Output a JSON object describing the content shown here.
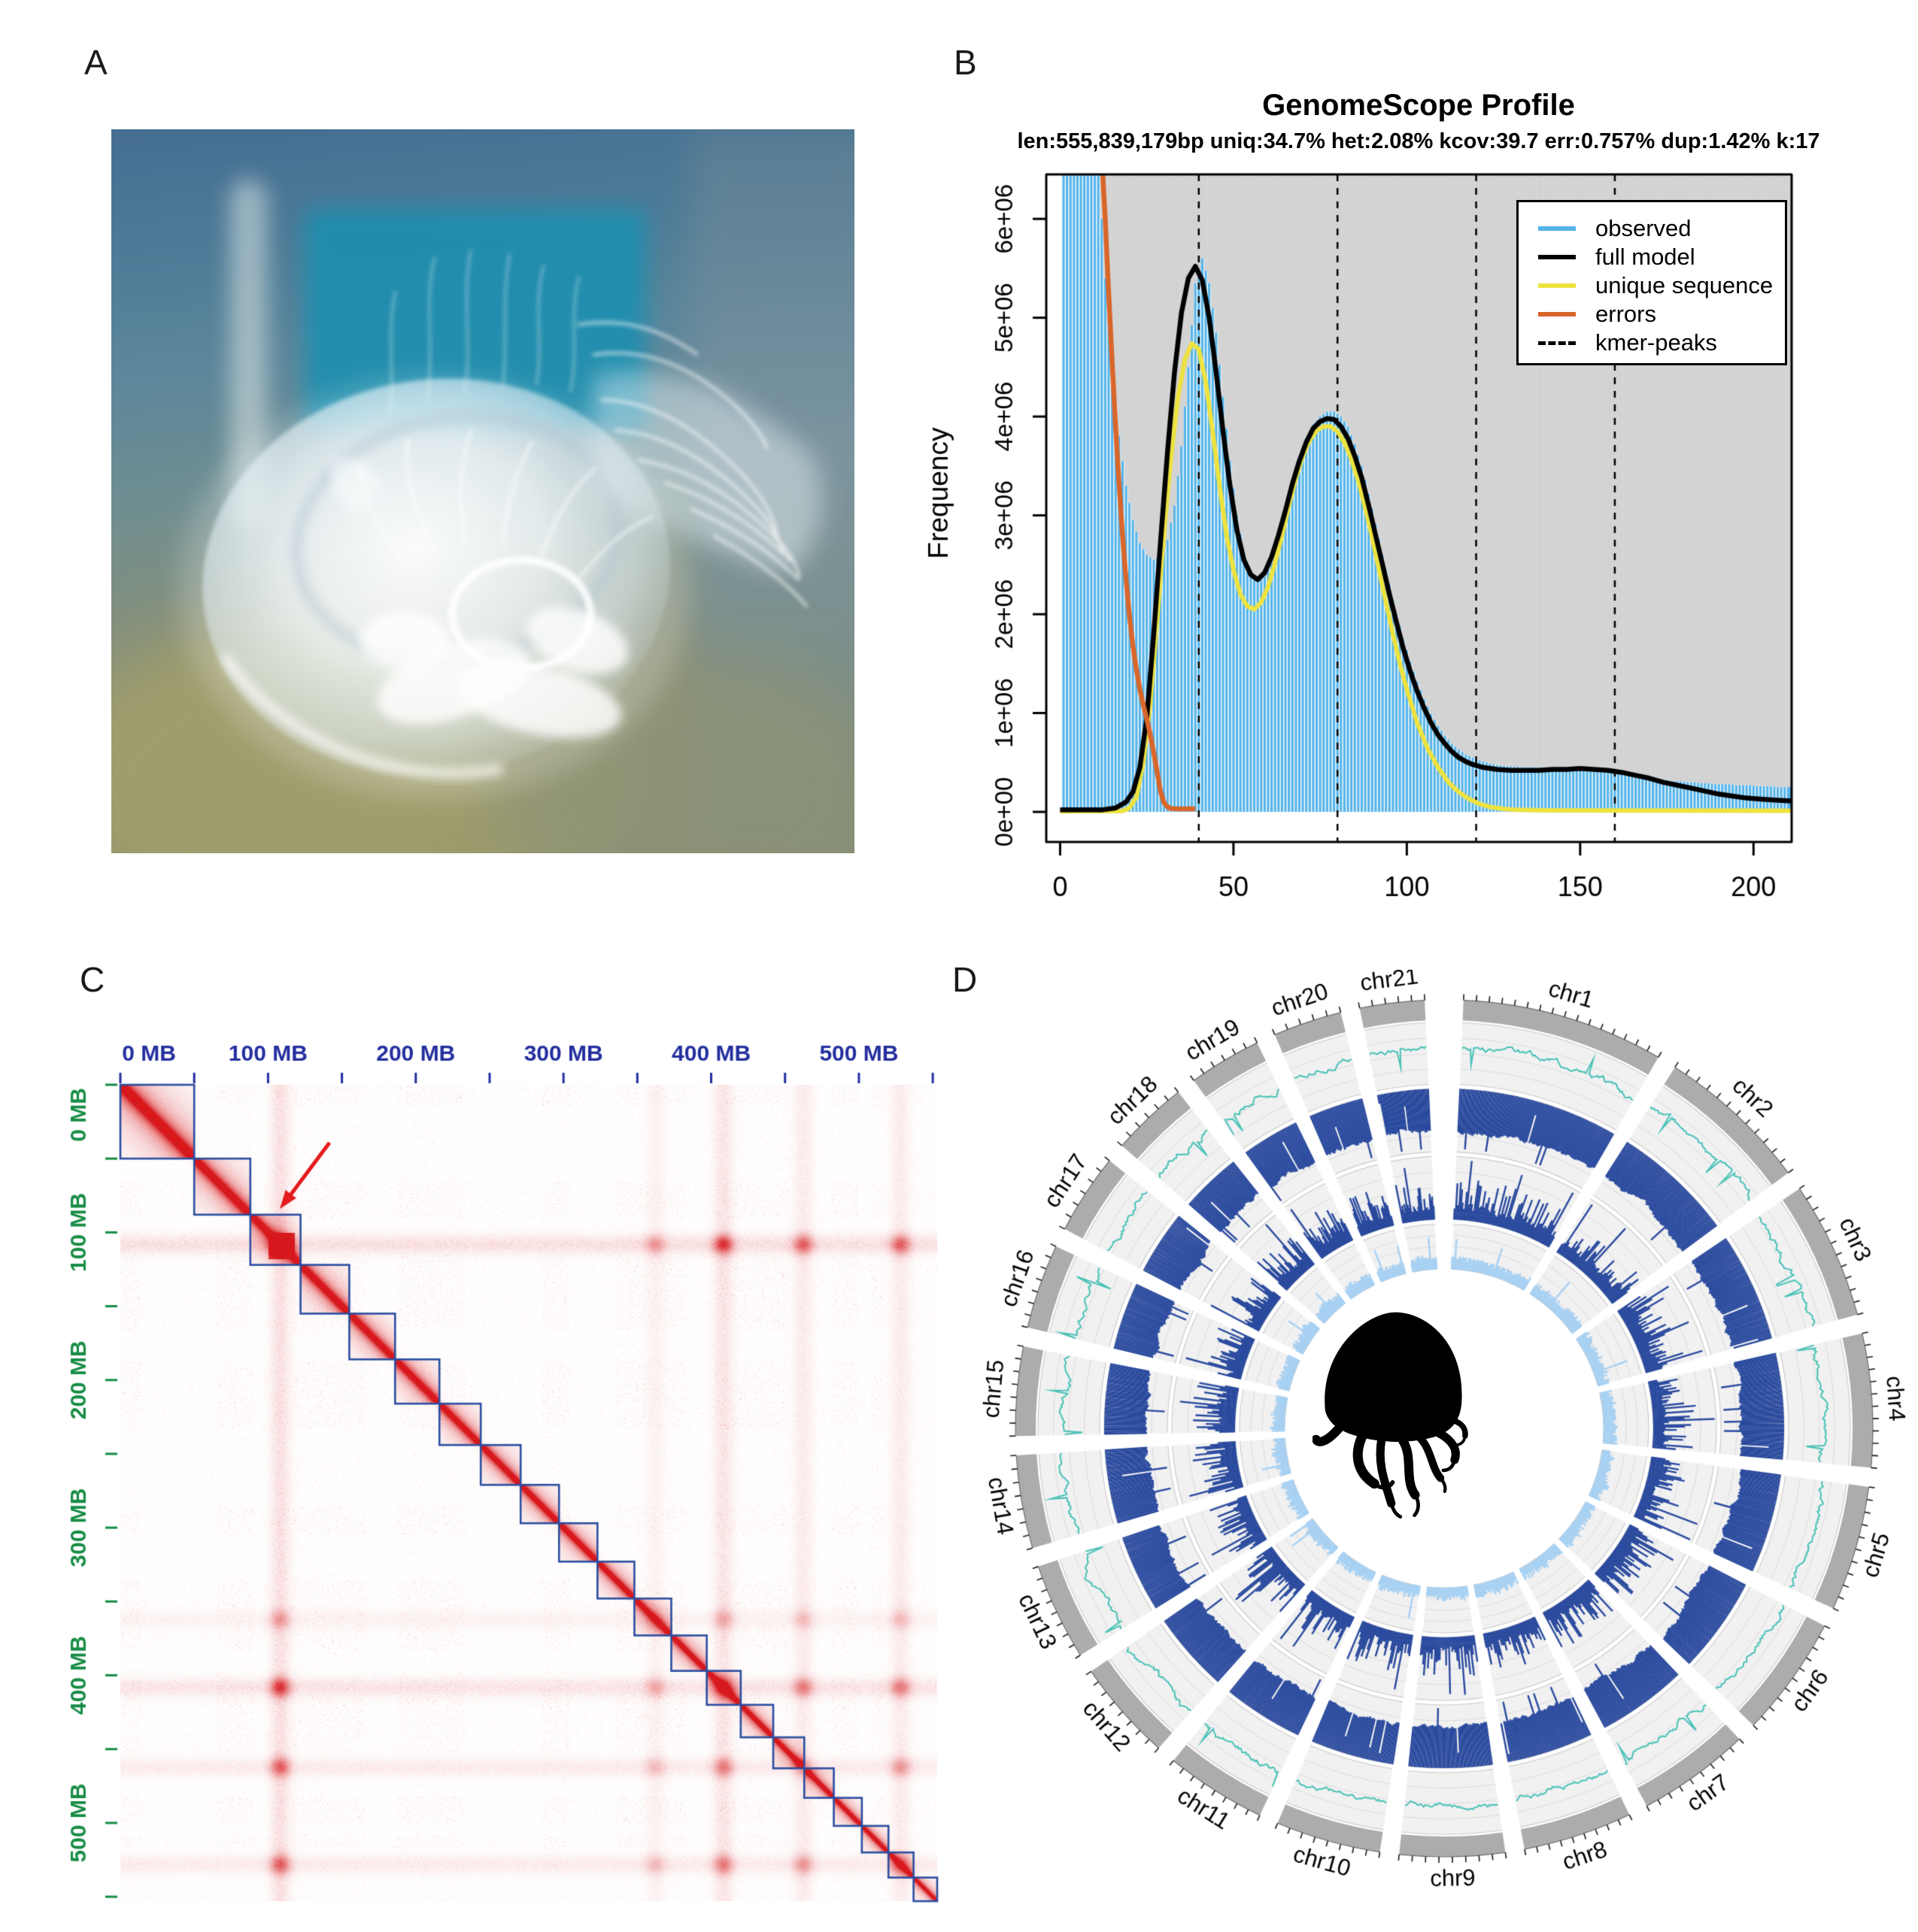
{
  "figure": {
    "panel_labels": {
      "a": "A",
      "b": "B",
      "c": "C",
      "d": "D"
    }
  },
  "panel_a": {
    "subject": "moon jellyfish photo",
    "colors": {
      "water_top": "#456e92",
      "teal_patch": "#1d8fb0",
      "sand": "#a3a06b",
      "jelly": "#f4fafc"
    }
  },
  "panel_b": {
    "title": "GenomeScope Profile",
    "subtitle": "len:555,839,179bp uniq:34.7%  het:2.08% kcov:39.7 err:0.757%  dup:1.42%  k:17",
    "ylabel": "Frequency",
    "x_tick_labels": [
      "0",
      "50",
      "100",
      "150",
      "200"
    ],
    "y_tick_labels": [
      "0e+00",
      "1e+06",
      "2e+06",
      "3e+06",
      "4e+06",
      "5e+06",
      "6e+06"
    ],
    "legend": [
      {
        "label": "observed",
        "color": "#56B4E9",
        "dash": false
      },
      {
        "label": "full model",
        "color": "#000000",
        "dash": false
      },
      {
        "label": "unique sequence",
        "color": "#EDE23F",
        "dash": false
      },
      {
        "label": "errors",
        "color": "#D9662A",
        "dash": false
      },
      {
        "label": "kmer-peaks",
        "color": "#000000",
        "dash": true
      }
    ],
    "plot_bg_above": "#D3D3D3"
  },
  "panel_c": {
    "top_axis_labels": [
      "0 MB",
      "100 MB",
      "200 MB",
      "300 MB",
      "400 MB",
      "500 MB"
    ],
    "left_axis_labels": [
      "0 MB",
      "100 MB",
      "200 MB",
      "300 MB",
      "400 MB",
      "500 MB"
    ],
    "tick_every_mb": 50,
    "label_every_mb": 100,
    "top_axis_color": "#232e9e",
    "left_axis_color": "#168c44",
    "block_border_color": "#2b4ea0",
    "heat_color": "#d7191c",
    "arrow_color": "#e41a1c"
  },
  "panel_d": {
    "ideogram_color": "#ACACAC",
    "track_bg": "#F1F1F2",
    "center_icon": "jellyfish-silhouette",
    "tracks": [
      {
        "name": "teal-line-track",
        "style": "line",
        "color": "#49C2B6"
      },
      {
        "name": "navy-inward-bar-track",
        "style": "bars-inward",
        "color": "#2A4A9E"
      },
      {
        "name": "navy-outward-bar-track",
        "style": "bars-outward",
        "color": "#2A4A9E"
      },
      {
        "name": "lightblue-bar-track",
        "style": "bars-outward",
        "color": "#A8D1F2"
      }
    ]
  },
  "chart_data": [
    {
      "id": "genomescope_profile",
      "type": "bar",
      "title": "GenomeScope Profile",
      "xlabel": "",
      "ylabel": "Frequency",
      "xlim": [
        -4,
        211
      ],
      "ylim_millions": [
        0,
        6.45
      ],
      "x_ticks": [
        0,
        50,
        100,
        150,
        200
      ],
      "y_ticks_millions": [
        0,
        1,
        2,
        3,
        4,
        5,
        6
      ],
      "kmer_peaks": [
        40,
        80,
        120,
        160
      ],
      "observed_x_start": 1,
      "observed_x_step": 2,
      "observed_millions": [
        40,
        28,
        18,
        12,
        8.5,
        6.6,
        5.4,
        4.5,
        3.8,
        3.3,
        2.95,
        2.72,
        2.6,
        2.55,
        2.58,
        2.75,
        3.1,
        3.7,
        4.5,
        5.35,
        5.6,
        5.35,
        4.85,
        4.2,
        3.55,
        3.0,
        2.62,
        2.42,
        2.33,
        2.38,
        2.52,
        2.72,
        2.98,
        3.28,
        3.55,
        3.78,
        3.92,
        4.0,
        4.05,
        4.05,
        4.0,
        3.9,
        3.72,
        3.5,
        3.22,
        2.92,
        2.6,
        2.3,
        2.0,
        1.75,
        1.52,
        1.32,
        1.14,
        0.99,
        0.87,
        0.77,
        0.69,
        0.63,
        0.58,
        0.55,
        0.52,
        0.5,
        0.48,
        0.47,
        0.46,
        0.46,
        0.45,
        0.45,
        0.45,
        0.45,
        0.44,
        0.44,
        0.44,
        0.43,
        0.43,
        0.42,
        0.42,
        0.41,
        0.4,
        0.4,
        0.39,
        0.38,
        0.37,
        0.36,
        0.35,
        0.34,
        0.33,
        0.32,
        0.31,
        0.31,
        0.3,
        0.3,
        0.29,
        0.29,
        0.28,
        0.28,
        0.28,
        0.27,
        0.27,
        0.27,
        0.26,
        0.26,
        0.26,
        0.25,
        0.25
      ],
      "series": [
        {
          "name": "full model",
          "color": "#000000",
          "points": [
            [
              0,
              0.02
            ],
            [
              12,
              0.02
            ],
            [
              16,
              0.04
            ],
            [
              19,
              0.1
            ],
            [
              21,
              0.2
            ],
            [
              23,
              0.45
            ],
            [
              25,
              0.95
            ],
            [
              27,
              1.8
            ],
            [
              29,
              2.75
            ],
            [
              31,
              3.65
            ],
            [
              33,
              4.45
            ],
            [
              35,
              5.05
            ],
            [
              37,
              5.4
            ],
            [
              39,
              5.52
            ],
            [
              41,
              5.38
            ],
            [
              43,
              5.0
            ],
            [
              45,
              4.45
            ],
            [
              47,
              3.85
            ],
            [
              49,
              3.3
            ],
            [
              51,
              2.85
            ],
            [
              53,
              2.55
            ],
            [
              55,
              2.4
            ],
            [
              57,
              2.35
            ],
            [
              59,
              2.42
            ],
            [
              61,
              2.58
            ],
            [
              63,
              2.8
            ],
            [
              65,
              3.05
            ],
            [
              67,
              3.32
            ],
            [
              69,
              3.55
            ],
            [
              71,
              3.74
            ],
            [
              73,
              3.88
            ],
            [
              75,
              3.95
            ],
            [
              77,
              3.98
            ],
            [
              79,
              3.97
            ],
            [
              81,
              3.9
            ],
            [
              83,
              3.78
            ],
            [
              85,
              3.6
            ],
            [
              87,
              3.38
            ],
            [
              89,
              3.1
            ],
            [
              91,
              2.8
            ],
            [
              93,
              2.5
            ],
            [
              95,
              2.2
            ],
            [
              97,
              1.92
            ],
            [
              99,
              1.65
            ],
            [
              101,
              1.42
            ],
            [
              103,
              1.22
            ],
            [
              105,
              1.05
            ],
            [
              107,
              0.9
            ],
            [
              109,
              0.78
            ],
            [
              111,
              0.69
            ],
            [
              113,
              0.61
            ],
            [
              115,
              0.55
            ],
            [
              117,
              0.51
            ],
            [
              119,
              0.48
            ],
            [
              122,
              0.45
            ],
            [
              126,
              0.43
            ],
            [
              130,
              0.42
            ],
            [
              134,
              0.42
            ],
            [
              138,
              0.42
            ],
            [
              142,
              0.43
            ],
            [
              146,
              0.43
            ],
            [
              150,
              0.44
            ],
            [
              154,
              0.43
            ],
            [
              158,
              0.42
            ],
            [
              162,
              0.4
            ],
            [
              166,
              0.37
            ],
            [
              170,
              0.34
            ],
            [
              174,
              0.3
            ],
            [
              178,
              0.27
            ],
            [
              182,
              0.24
            ],
            [
              186,
              0.21
            ],
            [
              190,
              0.18
            ],
            [
              194,
              0.16
            ],
            [
              198,
              0.14
            ],
            [
              202,
              0.13
            ],
            [
              206,
              0.12
            ],
            [
              211,
              0.11
            ]
          ]
        },
        {
          "name": "unique sequence",
          "color": "#EDE23F",
          "points": [
            [
              0,
              0.005
            ],
            [
              18,
              0.01
            ],
            [
              20,
              0.04
            ],
            [
              22,
              0.15
            ],
            [
              24,
              0.5
            ],
            [
              26,
              1.1
            ],
            [
              28,
              1.95
            ],
            [
              30,
              2.85
            ],
            [
              32,
              3.6
            ],
            [
              34,
              4.2
            ],
            [
              36,
              4.58
            ],
            [
              38,
              4.74
            ],
            [
              40,
              4.68
            ],
            [
              42,
              4.35
            ],
            [
              44,
              3.85
            ],
            [
              46,
              3.3
            ],
            [
              48,
              2.8
            ],
            [
              50,
              2.45
            ],
            [
              52,
              2.2
            ],
            [
              54,
              2.08
            ],
            [
              56,
              2.05
            ],
            [
              58,
              2.12
            ],
            [
              60,
              2.28
            ],
            [
              62,
              2.52
            ],
            [
              64,
              2.8
            ],
            [
              66,
              3.1
            ],
            [
              68,
              3.38
            ],
            [
              70,
              3.6
            ],
            [
              72,
              3.76
            ],
            [
              74,
              3.86
            ],
            [
              76,
              3.9
            ],
            [
              78,
              3.9
            ],
            [
              80,
              3.85
            ],
            [
              82,
              3.74
            ],
            [
              84,
              3.57
            ],
            [
              86,
              3.35
            ],
            [
              88,
              3.08
            ],
            [
              90,
              2.78
            ],
            [
              92,
              2.45
            ],
            [
              94,
              2.12
            ],
            [
              96,
              1.8
            ],
            [
              98,
              1.5
            ],
            [
              100,
              1.24
            ],
            [
              103,
              0.9
            ],
            [
              106,
              0.64
            ],
            [
              109,
              0.45
            ],
            [
              112,
              0.3
            ],
            [
              115,
              0.2
            ],
            [
              118,
              0.13
            ],
            [
              121,
              0.08
            ],
            [
              124,
              0.05
            ],
            [
              128,
              0.03
            ],
            [
              132,
              0.02
            ],
            [
              140,
              0.015
            ],
            [
              211,
              0.012
            ]
          ]
        },
        {
          "name": "errors",
          "color": "#D9662A",
          "points": [
            [
              12.3,
              6.45
            ],
            [
              13,
              6.0
            ],
            [
              14,
              5.25
            ],
            [
              15,
              4.55
            ],
            [
              16,
              3.9
            ],
            [
              17,
              3.32
            ],
            [
              18,
              2.8
            ],
            [
              19,
              2.36
            ],
            [
              20,
              1.98
            ],
            [
              21,
              1.68
            ],
            [
              22,
              1.44
            ],
            [
              23,
              1.24
            ],
            [
              24,
              1.08
            ],
            [
              25,
              0.94
            ],
            [
              26,
              0.78
            ],
            [
              27,
              0.6
            ],
            [
              28,
              0.4
            ],
            [
              29,
              0.2
            ],
            [
              30,
              0.09
            ],
            [
              31,
              0.05
            ],
            [
              32,
              0.035
            ],
            [
              34,
              0.03
            ],
            [
              36,
              0.03
            ],
            [
              39,
              0.03
            ]
          ]
        }
      ],
      "legend_position": "top-right",
      "grid": false
    },
    {
      "id": "hic_contact_map",
      "type": "heatmap",
      "axis_unit": "MB",
      "max_mb": 553,
      "tick_every_mb": 50,
      "label_every_mb": 100,
      "chromosome_sizes_mb": [
        50,
        38,
        34,
        33,
        31,
        30,
        28,
        27,
        26,
        26,
        25,
        25,
        24,
        23,
        22,
        21,
        20,
        19,
        18,
        17,
        16
      ],
      "hotspot_bands_mb": [
        {
          "mb": 108,
          "s": 1.0
        },
        {
          "mb": 362,
          "s": 0.35
        },
        {
          "mb": 408,
          "s": 0.8
        },
        {
          "mb": 462,
          "s": 0.6
        },
        {
          "mb": 528,
          "s": 0.6
        }
      ],
      "repeat_blob_mb": [
        100,
        118
      ],
      "arrow_target_mb": [
        108,
        84
      ]
    },
    {
      "id": "circos_assembly_overview",
      "type": "circular",
      "chromosomes": [
        {
          "name": "chr1",
          "size_mb": 50
        },
        {
          "name": "chr2",
          "size_mb": 38
        },
        {
          "name": "chr3",
          "size_mb": 34
        },
        {
          "name": "chr4",
          "size_mb": 33
        },
        {
          "name": "chr5",
          "size_mb": 31
        },
        {
          "name": "chr6",
          "size_mb": 30
        },
        {
          "name": "chr7",
          "size_mb": 28
        },
        {
          "name": "chr8",
          "size_mb": 27
        },
        {
          "name": "chr9",
          "size_mb": 26
        },
        {
          "name": "chr10",
          "size_mb": 26
        },
        {
          "name": "chr11",
          "size_mb": 25
        },
        {
          "name": "chr12",
          "size_mb": 25
        },
        {
          "name": "chr13",
          "size_mb": 24
        },
        {
          "name": "chr14",
          "size_mb": 23
        },
        {
          "name": "chr15",
          "size_mb": 22
        },
        {
          "name": "chr16",
          "size_mb": 21
        },
        {
          "name": "chr17",
          "size_mb": 20
        },
        {
          "name": "chr18",
          "size_mb": 19
        },
        {
          "name": "chr19",
          "size_mb": 18
        },
        {
          "name": "chr20",
          "size_mb": 17
        },
        {
          "name": "chr21",
          "size_mb": 16
        }
      ],
      "tracks": [
        {
          "name": "teal-line-track",
          "style": "line",
          "color": "#49C2B6",
          "r_in": 458,
          "r_out": 540
        },
        {
          "name": "navy-inward-bar-track",
          "style": "bars-inward",
          "color": "#2A4A9E",
          "r_in": 368,
          "r_out": 452
        },
        {
          "name": "navy-outward-bar-track",
          "style": "bars-outward",
          "color": "#2A4A9E",
          "r_in": 278,
          "r_out": 362
        },
        {
          "name": "lightblue-bar-track",
          "style": "bars-outward",
          "color": "#A8D1F2",
          "r_in": 212,
          "r_out": 272
        }
      ],
      "center_icon": "jellyfish-silhouette"
    }
  ]
}
